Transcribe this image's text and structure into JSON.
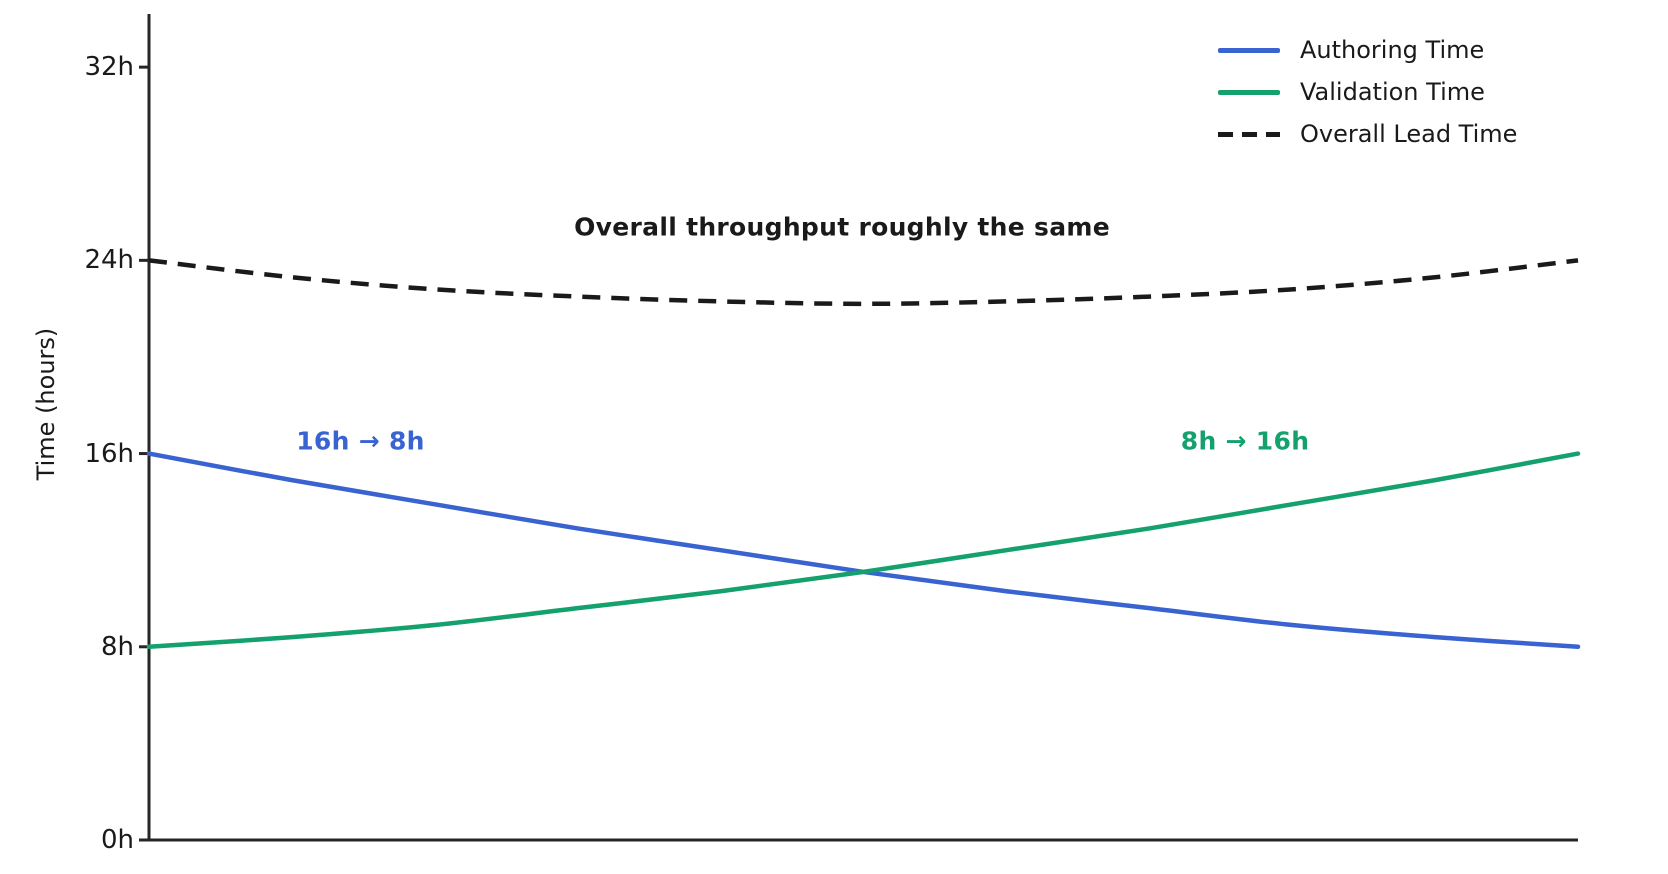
{
  "figure": {
    "background": "#ffffff",
    "axis_color": "#262626",
    "text_color": "#1a1a1a"
  },
  "chart_data": {
    "type": "line",
    "title": "",
    "xlabel": "",
    "ylabel": "Time (hours)",
    "xlim": [
      0,
      10
    ],
    "ylim": [
      0,
      34.2
    ],
    "grid": false,
    "legend_position": "upper right",
    "x": [
      0,
      1,
      2,
      3,
      4,
      5,
      6,
      7,
      8,
      9,
      10
    ],
    "xticks": [],
    "yticks": [
      {
        "value": 0,
        "label": "0h"
      },
      {
        "value": 8,
        "label": "8h"
      },
      {
        "value": 16,
        "label": "16h"
      },
      {
        "value": 24,
        "label": "24h"
      },
      {
        "value": 32,
        "label": "32h"
      }
    ],
    "series": [
      {
        "name": "Authoring Time",
        "color": "#3a63d2",
        "style": "solid",
        "values": [
          16,
          14.9,
          13.9,
          12.9,
          12.0,
          11.1,
          10.3,
          9.6,
          8.9,
          8.4,
          8
        ]
      },
      {
        "name": "Validation Time",
        "color": "#14a16d",
        "style": "solid",
        "values": [
          8,
          8.4,
          8.9,
          9.6,
          10.3,
          11.1,
          12.0,
          12.9,
          13.9,
          14.9,
          16
        ]
      },
      {
        "name": "Overall Lead Time",
        "color": "#1a1a1a",
        "style": "dashed",
        "values": [
          24,
          23.3,
          22.8,
          22.5,
          22.3,
          22.2,
          22.3,
          22.5,
          22.8,
          23.3,
          24
        ]
      }
    ],
    "annotations": [
      {
        "text": "Overall throughput roughly the same",
        "color": "#1a1a1a",
        "x": 4.85,
        "y": 25.4
      },
      {
        "text": "16h → 8h",
        "color": "#3a63d2",
        "x": 1.48,
        "y": 16.5
      },
      {
        "text": "8h → 16h",
        "color": "#14a16d",
        "x": 7.67,
        "y": 16.5
      }
    ]
  }
}
